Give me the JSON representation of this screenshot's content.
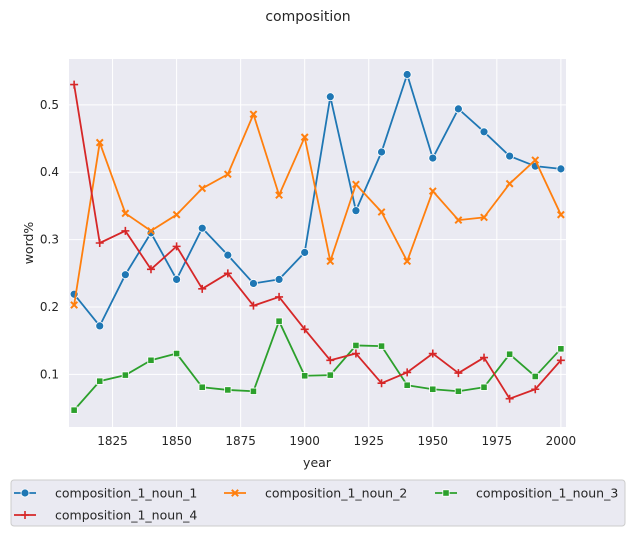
{
  "chart_data": {
    "type": "line",
    "title": "composition",
    "xlabel": "year",
    "ylabel": "word%",
    "xlim": [
      1808,
      2002
    ],
    "ylim": [
      0.022,
      0.568
    ],
    "xticks": [
      1825,
      1850,
      1875,
      1900,
      1925,
      1950,
      1975,
      2000
    ],
    "yticks": [
      0.1,
      0.2,
      0.3,
      0.4,
      0.5
    ],
    "ytick_labels": [
      "0.1",
      "0.2",
      "0.3",
      "0.4",
      "0.5"
    ],
    "grid": true,
    "legend_position": "bottom",
    "x": [
      1810,
      1820,
      1830,
      1840,
      1850,
      1860,
      1870,
      1880,
      1890,
      1900,
      1910,
      1920,
      1930,
      1940,
      1950,
      1960,
      1970,
      1980,
      1990,
      2000
    ],
    "series": [
      {
        "name": "composition_1_noun_1",
        "color": "#1f77b4",
        "marker": "circle",
        "values": [
          0.219,
          0.172,
          0.248,
          0.31,
          0.241,
          0.317,
          0.277,
          0.235,
          0.241,
          0.281,
          0.512,
          0.343,
          0.43,
          0.545,
          0.421,
          0.494,
          0.46,
          0.424,
          0.409,
          0.405
        ]
      },
      {
        "name": "composition_1_noun_2",
        "color": "#ff7f0e",
        "marker": "x",
        "values": [
          0.203,
          0.444,
          0.339,
          0.313,
          0.337,
          0.376,
          0.397,
          0.486,
          0.366,
          0.452,
          0.268,
          0.382,
          0.341,
          0.268,
          0.372,
          0.329,
          0.333,
          0.383,
          0.418,
          0.337
        ]
      },
      {
        "name": "composition_1_noun_3",
        "color": "#2ca02c",
        "marker": "square",
        "values": [
          0.047,
          0.09,
          0.099,
          0.121,
          0.131,
          0.081,
          0.077,
          0.075,
          0.179,
          0.098,
          0.099,
          0.143,
          0.142,
          0.084,
          0.078,
          0.075,
          0.081,
          0.13,
          0.097,
          0.138
        ]
      },
      {
        "name": "composition_1_noun_4",
        "color": "#d62728",
        "marker": "plus",
        "values": [
          0.53,
          0.295,
          0.313,
          0.256,
          0.29,
          0.227,
          0.25,
          0.202,
          0.215,
          0.167,
          0.121,
          0.131,
          0.087,
          0.103,
          0.131,
          0.102,
          0.125,
          0.064,
          0.078,
          0.121
        ]
      }
    ]
  }
}
